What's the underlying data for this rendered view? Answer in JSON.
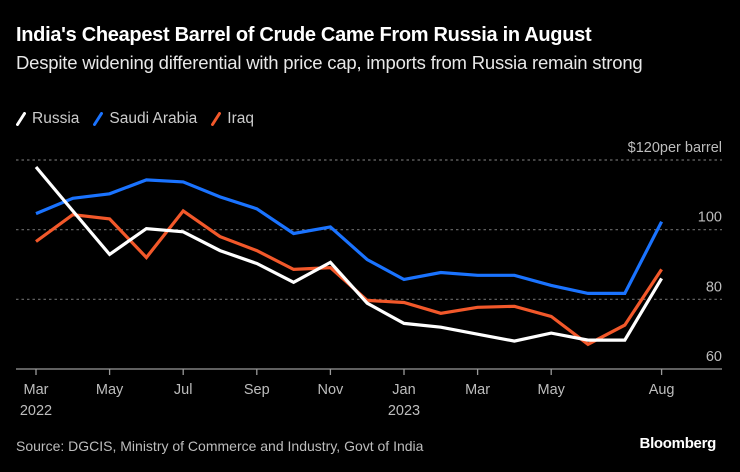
{
  "header": {
    "title": "India's Cheapest Barrel of Crude Came From Russia in August",
    "subtitle": "Despite widening differential with price cap, imports from Russia remain strong"
  },
  "footer": {
    "source": "Source: DGCIS, Ministry of Commerce and Industry, Govt of India",
    "brand": "Bloomberg"
  },
  "chart_data": {
    "type": "line",
    "title": "India's Cheapest Barrel of Crude Came From Russia in August",
    "subtitle": "Despite widening differential with price cap, imports from Russia remain strong",
    "xlabel": "",
    "ylabel": "per barrel",
    "y_unit_label": "$120per barrel",
    "ylim": [
      60,
      120
    ],
    "yticks": [
      {
        "value": 120,
        "label": "$120per barrel"
      },
      {
        "value": 100,
        "label": "100"
      },
      {
        "value": 80,
        "label": "80"
      },
      {
        "value": 60,
        "label": "60"
      }
    ],
    "grid": true,
    "legend_position": "top-left",
    "x": [
      "2022-03",
      "2022-04",
      "2022-05",
      "2022-06",
      "2022-07",
      "2022-08",
      "2022-09",
      "2022-10",
      "2022-11",
      "2022-12",
      "2023-01",
      "2023-02",
      "2023-03",
      "2023-04",
      "2023-05",
      "2023-06",
      "2023-07",
      "2023-08"
    ],
    "xticks": [
      {
        "index": 0,
        "label": "Mar",
        "sublabel": "2022"
      },
      {
        "index": 2,
        "label": "May",
        "sublabel": ""
      },
      {
        "index": 4,
        "label": "Jul",
        "sublabel": ""
      },
      {
        "index": 6,
        "label": "Sep",
        "sublabel": ""
      },
      {
        "index": 8,
        "label": "Nov",
        "sublabel": ""
      },
      {
        "index": 10,
        "label": "Jan",
        "sublabel": "2023"
      },
      {
        "index": 12,
        "label": "Mar",
        "sublabel": ""
      },
      {
        "index": 14,
        "label": "May",
        "sublabel": ""
      },
      {
        "index": 17,
        "label": "Aug",
        "sublabel": ""
      }
    ],
    "series": [
      {
        "name": "Russia",
        "color": "#ffffff",
        "values": [
          118.0,
          105.4,
          92.9,
          100.3,
          99.4,
          94.0,
          90.3,
          84.9,
          90.6,
          78.9,
          73.1,
          72.0,
          70.0,
          68.0,
          70.3,
          68.3,
          68.3,
          86.0
        ]
      },
      {
        "name": "Saudi Arabia",
        "color": "#1a73ff",
        "values": [
          104.6,
          109.0,
          110.3,
          114.3,
          113.7,
          109.4,
          106.0,
          98.9,
          100.8,
          91.4,
          85.7,
          87.7,
          86.9,
          86.9,
          84.0,
          81.7,
          81.7,
          102.3
        ]
      },
      {
        "name": "Iraq",
        "color": "#f2582a",
        "values": [
          96.6,
          104.3,
          103.1,
          92.0,
          105.4,
          98.0,
          94.0,
          88.6,
          89.1,
          79.7,
          79.1,
          76.0,
          77.7,
          78.0,
          75.1,
          67.1,
          72.6,
          88.6
        ]
      }
    ]
  }
}
